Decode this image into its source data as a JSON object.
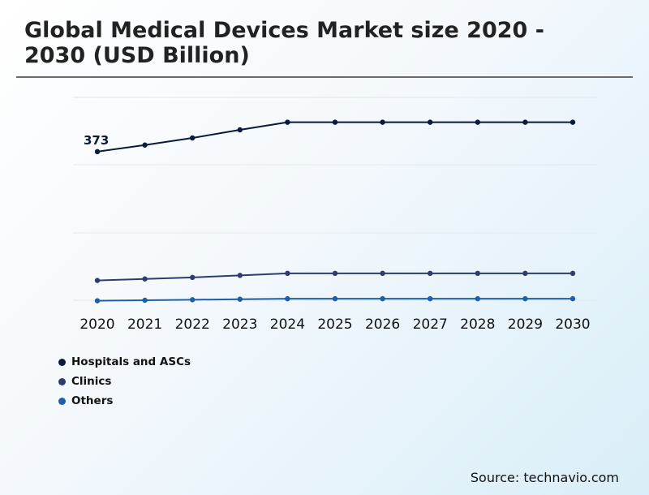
{
  "title": "Global Medical Devices Market size 2020 - 2030 (USD Billion)",
  "source": "Source: technavio.com",
  "chart_data": {
    "type": "line",
    "x": [
      "2020",
      "2021",
      "2022",
      "2023",
      "2024",
      "2025",
      "2026",
      "2027",
      "2028",
      "2029",
      "2030"
    ],
    "series": [
      {
        "name": "Hospitals and ASCs",
        "color": "#0b1a3c",
        "values": [
          373,
          386,
          400,
          416,
          431,
          431,
          431,
          431,
          431,
          431,
          431
        ]
      },
      {
        "name": "Clinics",
        "color": "#2e3d6e",
        "values": [
          119,
          122,
          125,
          129,
          133,
          133,
          133,
          133,
          133,
          133,
          133
        ]
      },
      {
        "name": "Others",
        "color": "#1f5fa8",
        "values": [
          79,
          80,
          81,
          82,
          83,
          83,
          83,
          83,
          83,
          83,
          83
        ]
      }
    ],
    "data_labels": [
      {
        "series": 0,
        "index": 0,
        "text": "373"
      }
    ],
    "ylim": [
      80,
      480
    ],
    "grid": true,
    "legend_position": "bottom-left"
  }
}
